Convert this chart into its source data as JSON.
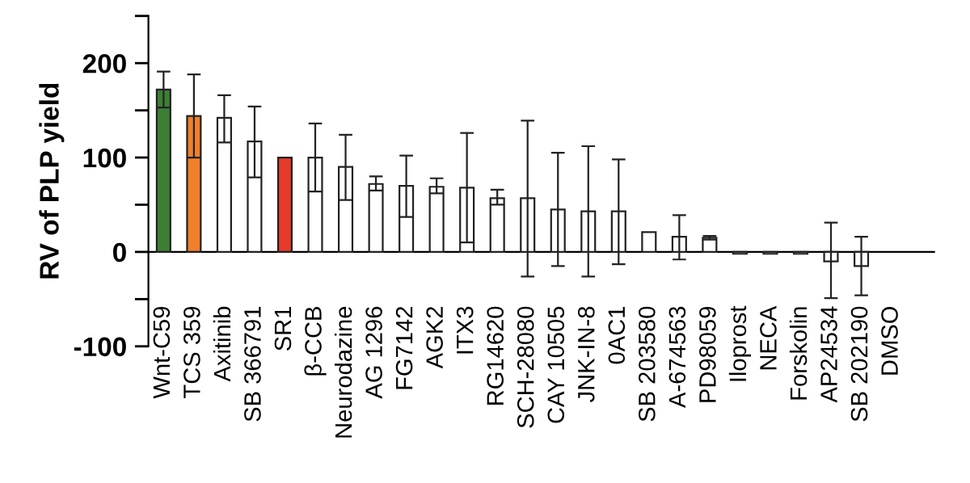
{
  "chart_data": {
    "type": "bar",
    "ylabel": "RV of PLP yield",
    "categories": [
      "Wnt-C59",
      "TCS 359",
      "Axitinib",
      "SB 366791",
      "SR1",
      "β-CCB",
      "Neurodazine",
      "AG 1296",
      "FG7142",
      "AGK2",
      "ITX3",
      "RG14620",
      "SCH-28080",
      "CAY 10505",
      "JNK-IN-8",
      "0AC1",
      "SB 203580",
      "A-674563",
      "PD98059",
      "Iloprost",
      "NECA",
      "Forskolin",
      "AP24534",
      "SB 202190",
      "DMSO"
    ],
    "values": [
      172,
      144,
      142,
      117,
      100,
      100,
      90,
      72,
      70,
      69,
      68,
      57,
      57,
      45,
      43,
      43,
      21,
      16,
      15,
      -2,
      -2,
      -2,
      -10,
      -15,
      0
    ],
    "errors": [
      [
        153,
        191
      ],
      [
        100,
        188
      ],
      [
        116,
        166
      ],
      [
        79,
        154
      ],
      null,
      [
        64,
        136
      ],
      [
        55,
        124
      ],
      [
        65,
        80
      ],
      [
        37,
        102
      ],
      [
        62,
        78
      ],
      [
        10,
        126
      ],
      [
        50,
        66
      ],
      [
        -26,
        139
      ],
      [
        -15,
        105
      ],
      [
        -26,
        112
      ],
      [
        -13,
        98
      ],
      null,
      [
        -8,
        39
      ],
      [
        13,
        17
      ],
      null,
      null,
      null,
      [
        -49,
        31
      ],
      [
        -46,
        16
      ],
      null
    ],
    "colors": [
      "#3c7f34",
      "#f07f2a",
      "#ffffff",
      "#ffffff",
      "#e63a2a",
      "#ffffff",
      "#ffffff",
      "#ffffff",
      "#ffffff",
      "#ffffff",
      "#ffffff",
      "#ffffff",
      "#ffffff",
      "#ffffff",
      "#ffffff",
      "#ffffff",
      "#ffffff",
      "#ffffff",
      "#ffffff",
      "#ffffff",
      "#ffffff",
      "#ffffff",
      "#ffffff",
      "#ffffff",
      "#ffffff"
    ],
    "ylim": [
      -100,
      250
    ],
    "yticks": [
      -100,
      {
        "value": -50,
        "label": null
      },
      0,
      {
        "value": 50,
        "label": null
      },
      100,
      {
        "value": 150,
        "label": null
      },
      200,
      {
        "value": 250,
        "label": null
      }
    ],
    "grid": false,
    "legend": false
  }
}
